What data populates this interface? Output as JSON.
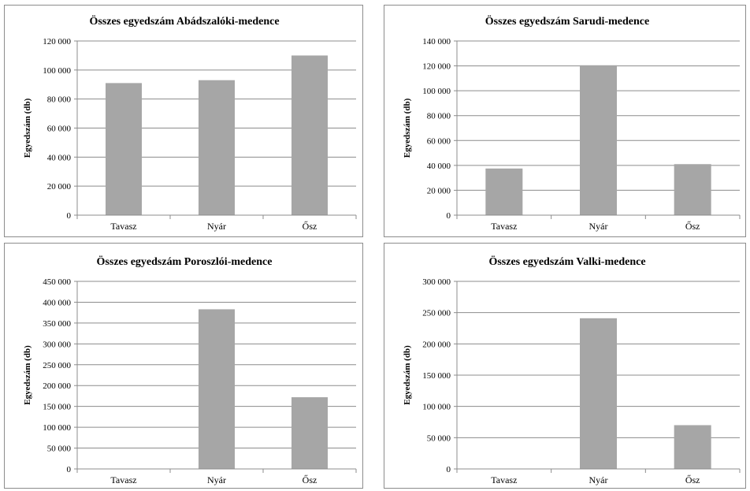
{
  "chart_data": [
    {
      "type": "bar",
      "title": "Összes egyedszám Abádszalóki-medence",
      "ylabel": "Egyedszám (db)",
      "categories": [
        "Tavasz",
        "Nyár",
        "Ősz"
      ],
      "values": [
        91000,
        93000,
        110000
      ],
      "ylim": [
        0,
        120000
      ],
      "yticks": [
        0,
        20000,
        40000,
        60000,
        80000,
        100000,
        120000
      ],
      "ytick_labels": [
        "0",
        "20 000",
        "40 000",
        "60 000",
        "80 000",
        "100 000",
        "120 000"
      ],
      "grid": true,
      "bar_color": "#a6a6a6"
    },
    {
      "type": "bar",
      "title": "Összes egyedszám Sarudi-medence",
      "ylabel": "Egyedszám (db)",
      "categories": [
        "Tavasz",
        "Nyár",
        "Ősz"
      ],
      "values": [
        37500,
        120500,
        41000
      ],
      "ylim": [
        0,
        140000
      ],
      "yticks": [
        0,
        20000,
        40000,
        60000,
        80000,
        100000,
        120000,
        140000
      ],
      "ytick_labels": [
        "0",
        "20 000",
        "40 000",
        "60 000",
        "80 000",
        "100 000",
        "120 000",
        "140 000"
      ],
      "grid": true,
      "bar_color": "#a6a6a6"
    },
    {
      "type": "bar",
      "title": "Összes egyedszám Poroszlói-medence",
      "ylabel": "Egyedszám (db)",
      "categories": [
        "Tavasz",
        "Nyár",
        "Ősz"
      ],
      "values": [
        0,
        383000,
        172000
      ],
      "ylim": [
        0,
        450000
      ],
      "yticks": [
        0,
        50000,
        100000,
        150000,
        200000,
        250000,
        300000,
        350000,
        400000,
        450000
      ],
      "ytick_labels": [
        "0",
        "50 000",
        "100 000",
        "150 000",
        "200 000",
        "250 000",
        "300 000",
        "350 000",
        "400 000",
        "450 000"
      ],
      "grid": true,
      "bar_color": "#a6a6a6"
    },
    {
      "type": "bar",
      "title": "Összes egyedszám Valki-medence",
      "ylabel": "Egyedszám (db)",
      "categories": [
        "Tavasz",
        "Nyár",
        "Ősz"
      ],
      "values": [
        0,
        241000,
        70000
      ],
      "ylim": [
        0,
        300000
      ],
      "yticks": [
        0,
        50000,
        100000,
        150000,
        200000,
        250000,
        300000
      ],
      "ytick_labels": [
        "0",
        "50 000",
        "100 000",
        "150 000",
        "200 000",
        "250 000",
        "300 000"
      ],
      "grid": true,
      "bar_color": "#a6a6a6"
    }
  ]
}
